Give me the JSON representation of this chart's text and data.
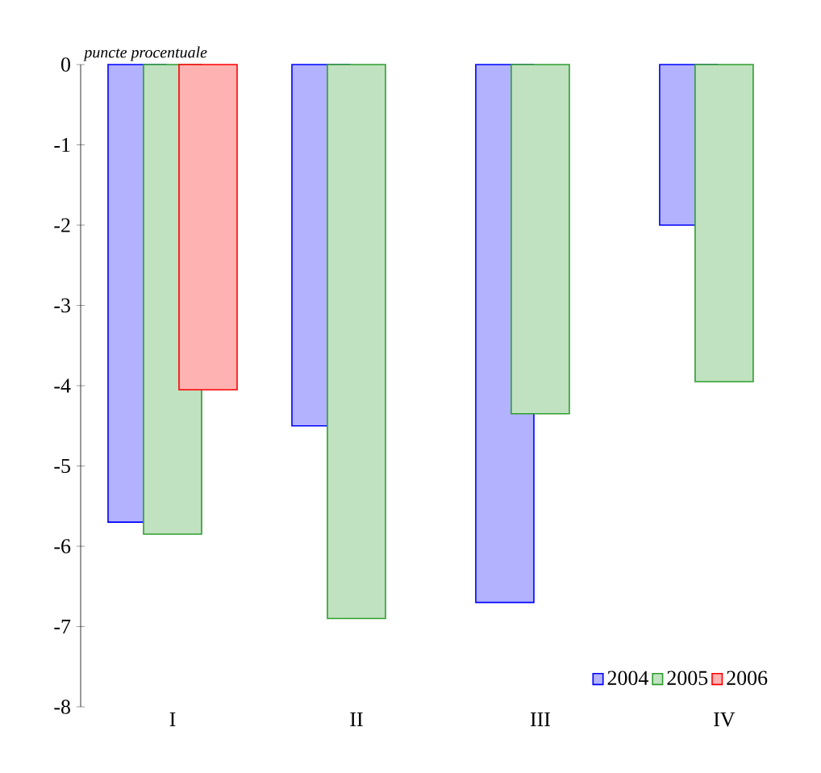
{
  "chart_data": {
    "type": "bar",
    "ylabel": "puncte procentuale",
    "categories": [
      "I",
      "II",
      "III",
      "IV"
    ],
    "series": [
      {
        "name": "2004",
        "color": "#0000ff",
        "values": [
          -5.7,
          -4.5,
          -6.7,
          -2.0
        ]
      },
      {
        "name": "2005",
        "color": "#2e9e2e",
        "values": [
          -5.85,
          -6.9,
          -4.35,
          -3.95
        ]
      },
      {
        "name": "2006",
        "color": "#ff0000",
        "values": [
          -4.05,
          null,
          null,
          null
        ]
      }
    ],
    "ylim": [
      -8,
      0
    ],
    "yticks": [
      -8,
      -7,
      -6,
      -5,
      -4,
      -3,
      -2,
      -1,
      0
    ],
    "legend": "bottom right",
    "grid": false
  }
}
